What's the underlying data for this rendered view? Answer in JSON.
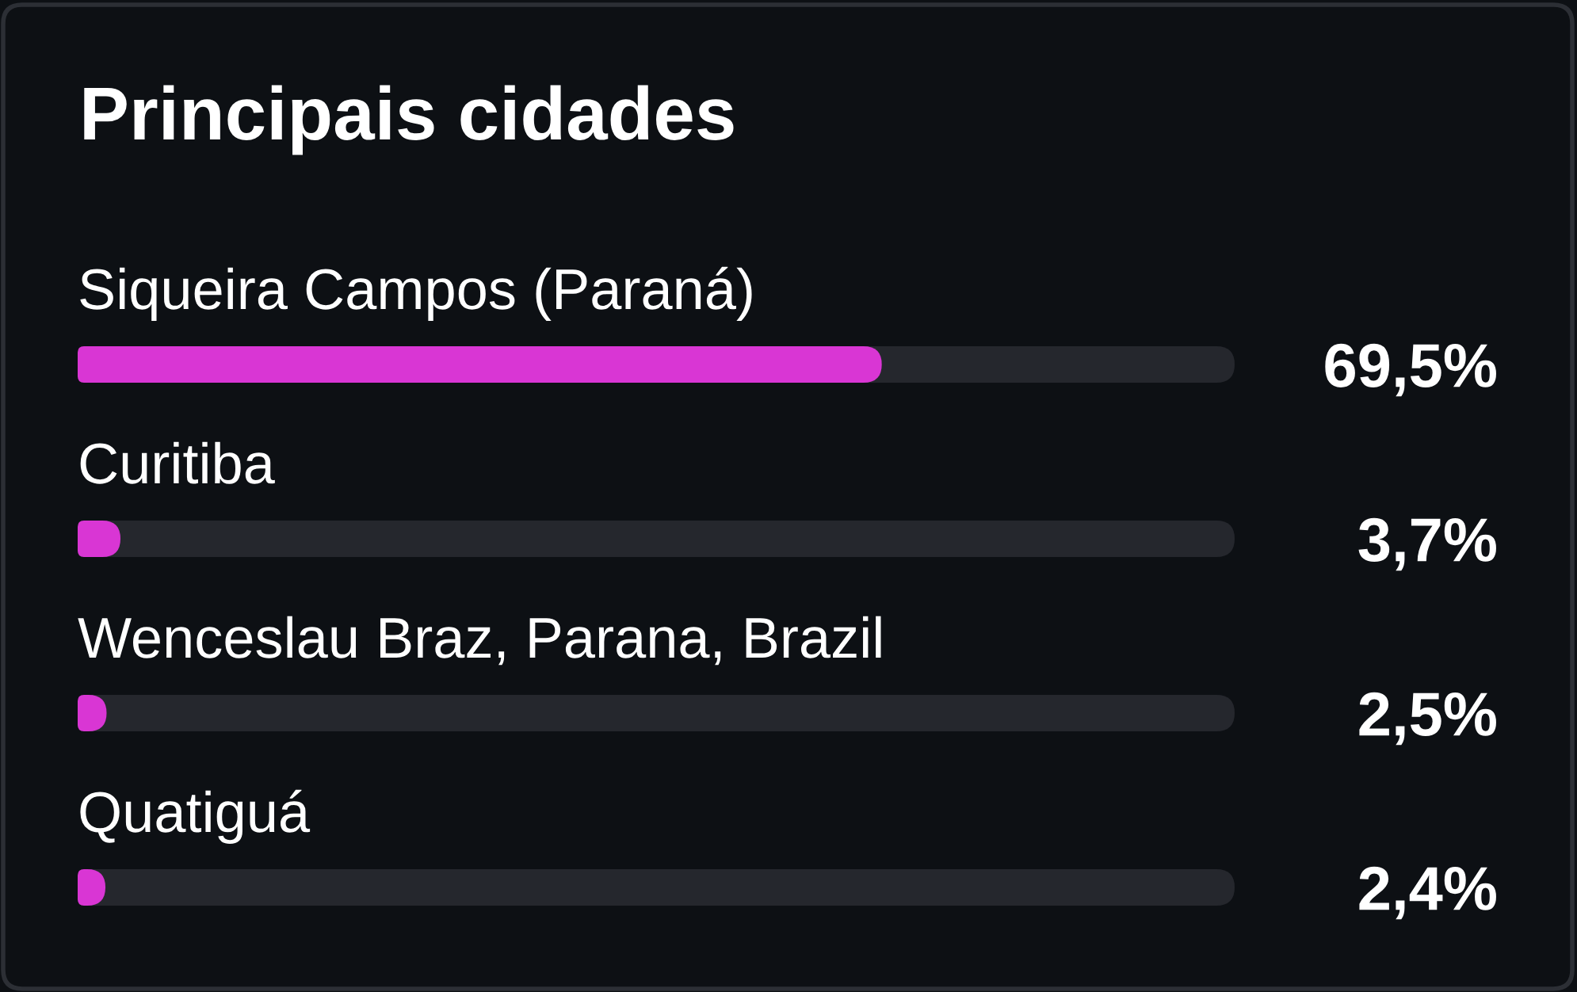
{
  "chart_data": {
    "type": "bar",
    "orientation": "horizontal",
    "title": "Principais cidades",
    "categories": [
      "Siqueira Campos (Paraná)",
      "Curitiba",
      "Wenceslau Braz, Parana, Brazil",
      "Quatiguá"
    ],
    "values": [
      69.5,
      3.7,
      2.5,
      2.4
    ],
    "value_labels": [
      "69,5%",
      "3,7%",
      "2,5%",
      "2,4%"
    ],
    "color": "#d936d4",
    "xlim": [
      0,
      100
    ],
    "tick_labels": false
  }
}
